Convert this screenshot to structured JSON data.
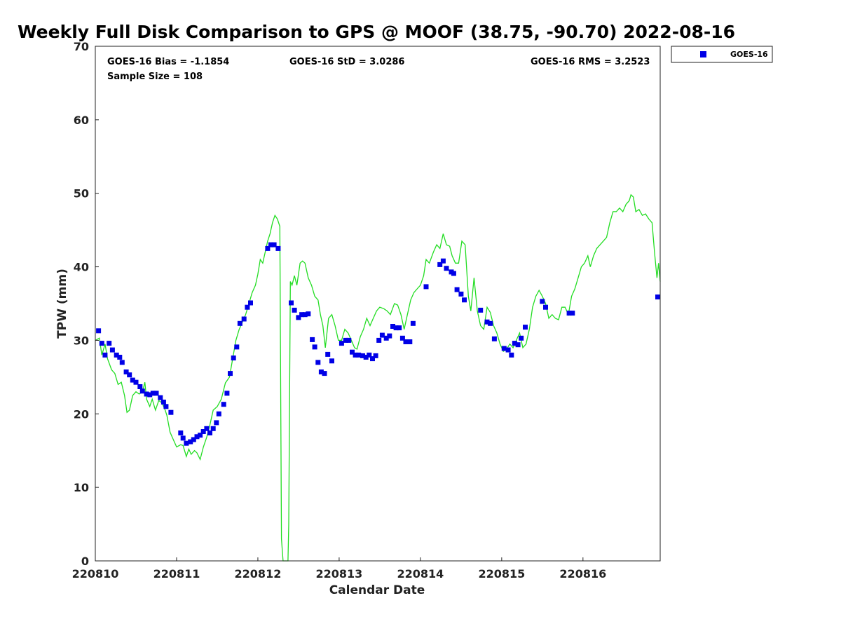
{
  "chart_data": {
    "type": "scatter",
    "title": "Weekly Full Disk Comparison to GPS @ MOOF (38.75, -90.70) 2022-08-16",
    "xlabel": "Calendar Date",
    "ylabel": "TPW (mm)",
    "xlim": [
      0,
      6.95
    ],
    "ylim": [
      0,
      70
    ],
    "x_ticks": [
      0,
      1,
      2,
      3,
      4,
      5,
      6
    ],
    "x_tick_labels": [
      "220810",
      "220811",
      "220812",
      "220813",
      "220814",
      "220815",
      "220816"
    ],
    "y_ticks": [
      0,
      10,
      20,
      30,
      40,
      50,
      60,
      70
    ],
    "y_tick_labels": [
      "0",
      "10",
      "20",
      "30",
      "40",
      "50",
      "60",
      "70"
    ],
    "grid": false,
    "legend_position": "top-right",
    "stats": {
      "bias": "GOES-16 Bias = -1.1854",
      "std": "GOES-16 StD = 3.0286",
      "rms": "GOES-16 RMS = 3.2523",
      "sample": "Sample Size = 108"
    },
    "legend": [
      {
        "label": "GOES-16",
        "color": "#0000e6"
      }
    ],
    "series": [
      {
        "name": "GOES-16",
        "kind": "scatter",
        "color": "#0000e6",
        "points": [
          [
            0.04,
            31.3
          ],
          [
            0.08,
            29.6
          ],
          [
            0.12,
            28.0
          ],
          [
            0.17,
            29.6
          ],
          [
            0.21,
            28.7
          ],
          [
            0.26,
            28.0
          ],
          [
            0.3,
            27.7
          ],
          [
            0.33,
            27.0
          ],
          [
            0.38,
            25.7
          ],
          [
            0.42,
            25.3
          ],
          [
            0.46,
            24.6
          ],
          [
            0.5,
            24.3
          ],
          [
            0.55,
            23.7
          ],
          [
            0.58,
            23.1
          ],
          [
            0.63,
            22.7
          ],
          [
            0.67,
            22.6
          ],
          [
            0.71,
            22.8
          ],
          [
            0.75,
            22.8
          ],
          [
            0.8,
            22.2
          ],
          [
            0.84,
            21.6
          ],
          [
            0.87,
            21.0
          ],
          [
            0.93,
            20.2
          ],
          [
            1.05,
            17.4
          ],
          [
            1.08,
            16.7
          ],
          [
            1.12,
            16.0
          ],
          [
            1.17,
            16.2
          ],
          [
            1.21,
            16.5
          ],
          [
            1.25,
            16.9
          ],
          [
            1.29,
            17.1
          ],
          [
            1.33,
            17.6
          ],
          [
            1.37,
            18.0
          ],
          [
            1.41,
            17.4
          ],
          [
            1.45,
            18.0
          ],
          [
            1.49,
            18.8
          ],
          [
            1.52,
            20.0
          ],
          [
            1.58,
            21.3
          ],
          [
            1.62,
            22.8
          ],
          [
            1.66,
            25.5
          ],
          [
            1.7,
            27.6
          ],
          [
            1.74,
            29.1
          ],
          [
            1.78,
            32.3
          ],
          [
            1.83,
            32.9
          ],
          [
            1.87,
            34.5
          ],
          [
            1.91,
            35.1
          ],
          [
            2.12,
            42.5
          ],
          [
            2.16,
            43.0
          ],
          [
            2.2,
            43.0
          ],
          [
            2.25,
            42.5
          ],
          [
            2.41,
            35.1
          ],
          [
            2.45,
            34.1
          ],
          [
            2.5,
            33.1
          ],
          [
            2.54,
            33.5
          ],
          [
            2.58,
            33.5
          ],
          [
            2.62,
            33.6
          ],
          [
            2.67,
            30.1
          ],
          [
            2.7,
            29.1
          ],
          [
            2.74,
            27.0
          ],
          [
            2.78,
            25.7
          ],
          [
            2.82,
            25.5
          ],
          [
            2.86,
            28.1
          ],
          [
            2.91,
            27.2
          ],
          [
            3.03,
            29.6
          ],
          [
            3.08,
            30.0
          ],
          [
            3.12,
            30.0
          ],
          [
            3.16,
            28.4
          ],
          [
            3.2,
            28.0
          ],
          [
            3.24,
            28.0
          ],
          [
            3.29,
            27.9
          ],
          [
            3.33,
            27.7
          ],
          [
            3.37,
            28.0
          ],
          [
            3.41,
            27.5
          ],
          [
            3.45,
            27.9
          ],
          [
            3.49,
            30.0
          ],
          [
            3.53,
            30.7
          ],
          [
            3.58,
            30.3
          ],
          [
            3.62,
            30.6
          ],
          [
            3.66,
            31.9
          ],
          [
            3.7,
            31.7
          ],
          [
            3.74,
            31.7
          ],
          [
            3.78,
            30.3
          ],
          [
            3.82,
            29.8
          ],
          [
            3.87,
            29.8
          ],
          [
            3.91,
            32.3
          ],
          [
            4.07,
            37.3
          ],
          [
            4.24,
            40.3
          ],
          [
            4.28,
            40.8
          ],
          [
            4.32,
            39.8
          ],
          [
            4.38,
            39.3
          ],
          [
            4.41,
            39.1
          ],
          [
            4.45,
            36.9
          ],
          [
            4.5,
            36.3
          ],
          [
            4.54,
            35.5
          ],
          [
            4.74,
            34.1
          ],
          [
            4.82,
            32.5
          ],
          [
            4.86,
            32.3
          ],
          [
            4.91,
            30.2
          ],
          [
            5.03,
            28.9
          ],
          [
            5.08,
            28.7
          ],
          [
            5.12,
            28.0
          ],
          [
            5.16,
            29.6
          ],
          [
            5.2,
            29.4
          ],
          [
            5.24,
            30.3
          ],
          [
            5.29,
            31.8
          ],
          [
            5.5,
            35.3
          ],
          [
            5.54,
            34.5
          ],
          [
            5.83,
            33.7
          ],
          [
            5.87,
            33.7
          ],
          [
            6.92,
            35.9
          ]
        ]
      },
      {
        "name": "GPS",
        "kind": "line",
        "color": "#22dd22",
        "points": [
          [
            0.0,
            30.0
          ],
          [
            0.05,
            30.3
          ],
          [
            0.08,
            28.0
          ],
          [
            0.12,
            29.5
          ],
          [
            0.15,
            27.5
          ],
          [
            0.2,
            26.0
          ],
          [
            0.24,
            25.5
          ],
          [
            0.28,
            24.0
          ],
          [
            0.32,
            24.3
          ],
          [
            0.36,
            22.5
          ],
          [
            0.39,
            20.2
          ],
          [
            0.42,
            20.5
          ],
          [
            0.46,
            22.5
          ],
          [
            0.5,
            23.0
          ],
          [
            0.54,
            22.7
          ],
          [
            0.58,
            23.0
          ],
          [
            0.61,
            24.3
          ],
          [
            0.63,
            22.0
          ],
          [
            0.67,
            21.0
          ],
          [
            0.7,
            22.0
          ],
          [
            0.74,
            20.5
          ],
          [
            0.78,
            21.8
          ],
          [
            0.82,
            21.5
          ],
          [
            0.86,
            20.5
          ],
          [
            0.88,
            19.8
          ],
          [
            0.92,
            17.5
          ],
          [
            0.96,
            16.5
          ],
          [
            1.0,
            15.5
          ],
          [
            1.05,
            15.8
          ],
          [
            1.08,
            15.7
          ],
          [
            1.12,
            14.2
          ],
          [
            1.15,
            15.2
          ],
          [
            1.18,
            14.5
          ],
          [
            1.22,
            15.0
          ],
          [
            1.25,
            14.7
          ],
          [
            1.29,
            13.8
          ],
          [
            1.33,
            15.5
          ],
          [
            1.37,
            16.8
          ],
          [
            1.41,
            18.5
          ],
          [
            1.45,
            20.5
          ],
          [
            1.5,
            21.0
          ],
          [
            1.55,
            22.0
          ],
          [
            1.6,
            24.2
          ],
          [
            1.65,
            25.0
          ],
          [
            1.69,
            27.5
          ],
          [
            1.73,
            30.0
          ],
          [
            1.77,
            31.5
          ],
          [
            1.81,
            32.5
          ],
          [
            1.85,
            33.5
          ],
          [
            1.89,
            35.0
          ],
          [
            1.93,
            36.5
          ],
          [
            1.97,
            37.5
          ],
          [
            2.0,
            39.0
          ],
          [
            2.03,
            41.0
          ],
          [
            2.06,
            40.5
          ],
          [
            2.09,
            42.0
          ],
          [
            2.12,
            43.5
          ],
          [
            2.15,
            44.5
          ],
          [
            2.18,
            46.0
          ],
          [
            2.21,
            47.0
          ],
          [
            2.24,
            46.5
          ],
          [
            2.27,
            45.5
          ],
          [
            2.29,
            3.0
          ],
          [
            2.31,
            0.0
          ],
          [
            2.33,
            0.0
          ],
          [
            2.35,
            0.0
          ],
          [
            2.37,
            0.0
          ],
          [
            2.38,
            5.0
          ],
          [
            2.4,
            38.0
          ],
          [
            2.42,
            37.5
          ],
          [
            2.45,
            38.8
          ],
          [
            2.48,
            37.5
          ],
          [
            2.52,
            40.5
          ],
          [
            2.55,
            40.8
          ],
          [
            2.58,
            40.5
          ],
          [
            2.62,
            38.5
          ],
          [
            2.66,
            37.5
          ],
          [
            2.7,
            36.0
          ],
          [
            2.74,
            35.5
          ],
          [
            2.77,
            33.5
          ],
          [
            2.8,
            32.0
          ],
          [
            2.83,
            29.0
          ],
          [
            2.87,
            33.0
          ],
          [
            2.91,
            33.5
          ],
          [
            2.95,
            32.0
          ],
          [
            2.99,
            30.0
          ],
          [
            3.03,
            30.0
          ],
          [
            3.07,
            31.5
          ],
          [
            3.11,
            31.0
          ],
          [
            3.15,
            30.0
          ],
          [
            3.19,
            29.0
          ],
          [
            3.22,
            28.8
          ],
          [
            3.26,
            30.5
          ],
          [
            3.3,
            31.5
          ],
          [
            3.34,
            33.0
          ],
          [
            3.38,
            32.0
          ],
          [
            3.42,
            33.0
          ],
          [
            3.46,
            34.0
          ],
          [
            3.5,
            34.5
          ],
          [
            3.55,
            34.3
          ],
          [
            3.59,
            34.0
          ],
          [
            3.63,
            33.5
          ],
          [
            3.68,
            35.0
          ],
          [
            3.72,
            34.8
          ],
          [
            3.76,
            33.5
          ],
          [
            3.8,
            31.5
          ],
          [
            3.84,
            33.5
          ],
          [
            3.88,
            35.5
          ],
          [
            3.92,
            36.5
          ],
          [
            3.96,
            37.0
          ],
          [
            4.0,
            37.5
          ],
          [
            4.04,
            38.8
          ],
          [
            4.07,
            41.0
          ],
          [
            4.11,
            40.5
          ],
          [
            4.16,
            42.0
          ],
          [
            4.2,
            43.0
          ],
          [
            4.24,
            42.5
          ],
          [
            4.28,
            44.5
          ],
          [
            4.32,
            43.0
          ],
          [
            4.36,
            42.8
          ],
          [
            4.39,
            41.5
          ],
          [
            4.43,
            40.5
          ],
          [
            4.47,
            40.5
          ],
          [
            4.51,
            43.5
          ],
          [
            4.55,
            43.0
          ],
          [
            4.59,
            36.0
          ],
          [
            4.62,
            34.0
          ],
          [
            4.66,
            38.5
          ],
          [
            4.7,
            34.0
          ],
          [
            4.74,
            32.0
          ],
          [
            4.78,
            31.5
          ],
          [
            4.82,
            34.5
          ],
          [
            4.86,
            33.8
          ],
          [
            4.9,
            32.0
          ],
          [
            4.94,
            31.0
          ],
          [
            4.98,
            29.5
          ],
          [
            5.02,
            28.5
          ],
          [
            5.06,
            28.8
          ],
          [
            5.1,
            29.5
          ],
          [
            5.14,
            29.0
          ],
          [
            5.18,
            30.0
          ],
          [
            5.22,
            31.0
          ],
          [
            5.26,
            29.0
          ],
          [
            5.3,
            29.5
          ],
          [
            5.34,
            31.5
          ],
          [
            5.38,
            34.5
          ],
          [
            5.42,
            36.0
          ],
          [
            5.46,
            36.8
          ],
          [
            5.5,
            36.0
          ],
          [
            5.54,
            35.0
          ],
          [
            5.58,
            33.0
          ],
          [
            5.62,
            33.5
          ],
          [
            5.66,
            33.0
          ],
          [
            5.7,
            32.8
          ],
          [
            5.74,
            34.5
          ],
          [
            5.78,
            34.5
          ],
          [
            5.82,
            33.5
          ],
          [
            5.86,
            36.0
          ],
          [
            5.9,
            37.0
          ],
          [
            5.94,
            38.5
          ],
          [
            5.98,
            40.0
          ],
          [
            6.02,
            40.5
          ],
          [
            6.06,
            41.5
          ],
          [
            6.09,
            40.0
          ],
          [
            6.13,
            41.5
          ],
          [
            6.17,
            42.5
          ],
          [
            6.21,
            43.0
          ],
          [
            6.25,
            43.5
          ],
          [
            6.29,
            44.0
          ],
          [
            6.33,
            46.0
          ],
          [
            6.37,
            47.5
          ],
          [
            6.41,
            47.5
          ],
          [
            6.45,
            48.0
          ],
          [
            6.49,
            47.5
          ],
          [
            6.53,
            48.5
          ],
          [
            6.57,
            49.0
          ],
          [
            6.59,
            49.8
          ],
          [
            6.62,
            49.5
          ],
          [
            6.65,
            47.5
          ],
          [
            6.69,
            47.8
          ],
          [
            6.73,
            47.0
          ],
          [
            6.77,
            47.2
          ],
          [
            6.81,
            46.5
          ],
          [
            6.85,
            46.0
          ],
          [
            6.88,
            42.0
          ],
          [
            6.91,
            38.5
          ],
          [
            6.93,
            40.5
          ],
          [
            6.95,
            38.0
          ]
        ]
      }
    ]
  }
}
